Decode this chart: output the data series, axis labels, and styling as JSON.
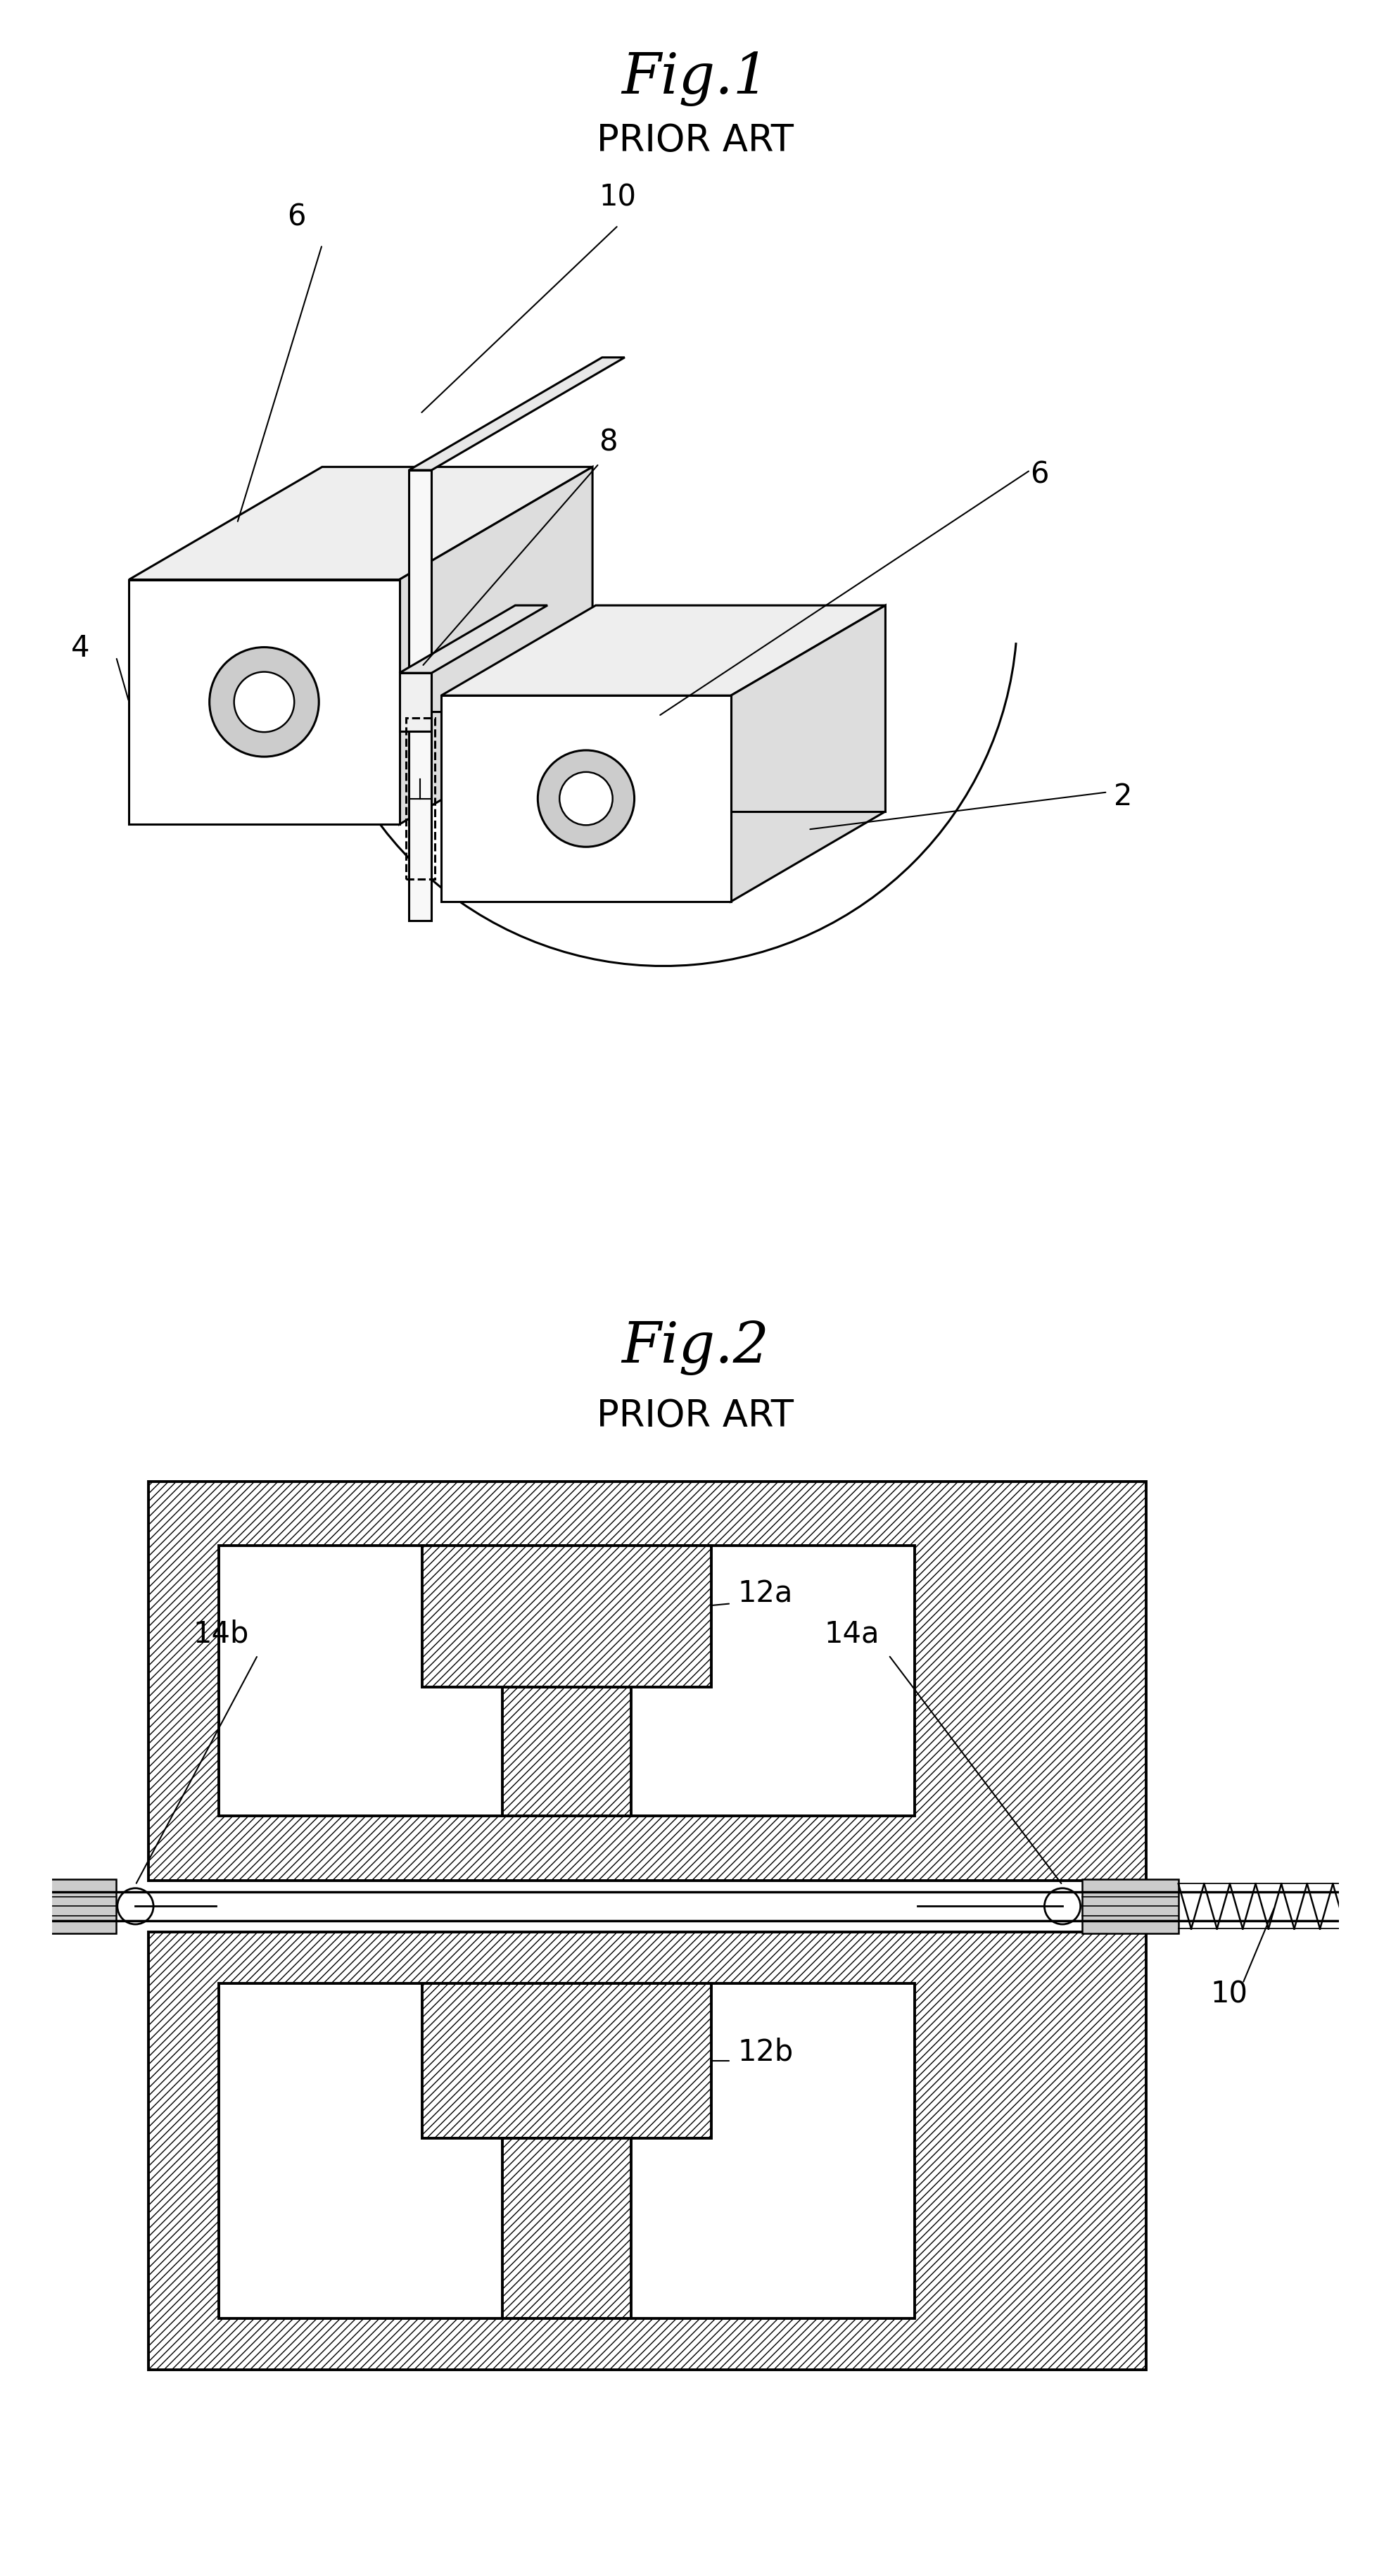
{
  "fig1_title": "Fig.1",
  "fig1_subtitle": "PRIOR ART",
  "fig2_title": "Fig.2",
  "fig2_subtitle": "PRIOR ART",
  "bg_color": "#ffffff",
  "line_color": "#000000",
  "label_fontsize": 30,
  "title_fontsize": 58,
  "subtitle_fontsize": 38,
  "lw_main": 2.2,
  "lw_thick": 2.8
}
